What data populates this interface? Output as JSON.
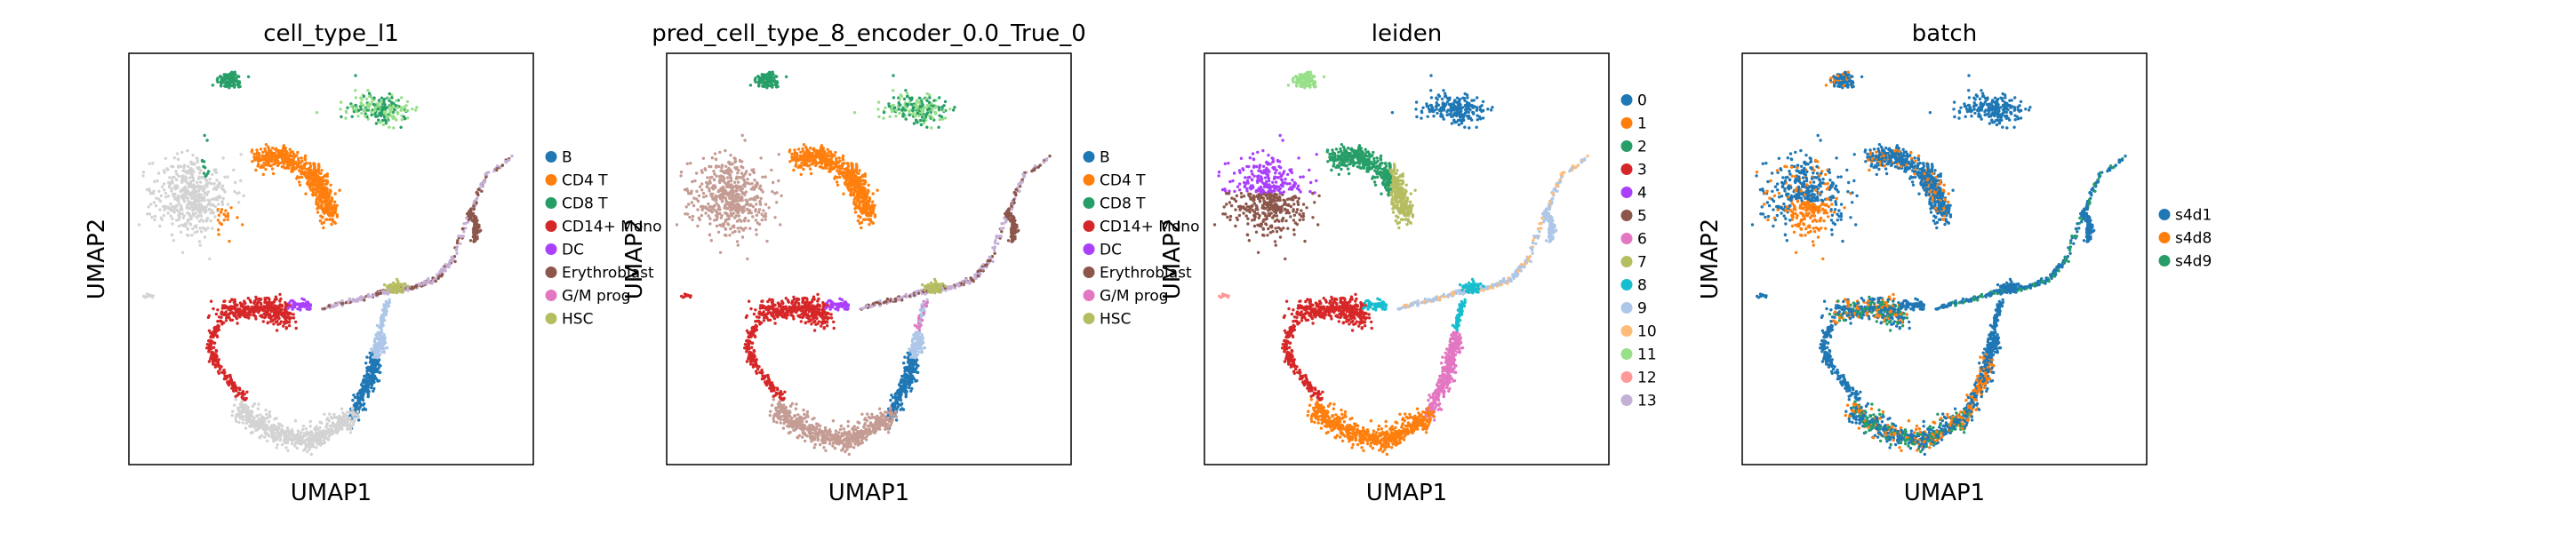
{
  "chart_data": [
    {
      "type": "scatter",
      "title": "cell_type_l1",
      "xlabel": "UMAP1",
      "ylabel": "UMAP2",
      "grid": false,
      "legend_placement": "right",
      "legend": [
        {
          "label": "B",
          "color": "#1f77b4"
        },
        {
          "label": "CD4 T",
          "color": "#ff7f0e"
        },
        {
          "label": "CD8 T",
          "color": "#279e68"
        },
        {
          "label": "CD14+ Mono",
          "color": "#d62728"
        },
        {
          "label": "DC",
          "color": "#aa40fc"
        },
        {
          "label": "Erythroblast",
          "color": "#8c564b"
        },
        {
          "label": "G/M prog",
          "color": "#e377c2"
        },
        {
          "label": "HSC",
          "color": "#b5bd61"
        }
      ]
    },
    {
      "type": "scatter",
      "title": "pred_cell_type_8_encoder_0.0_True_0",
      "xlabel": "UMAP1",
      "ylabel": "UMAP2",
      "grid": false,
      "legend_placement": "right",
      "legend": [
        {
          "label": "B",
          "color": "#1f77b4"
        },
        {
          "label": "CD4 T",
          "color": "#ff7f0e"
        },
        {
          "label": "CD8 T",
          "color": "#279e68"
        },
        {
          "label": "CD14+ Mono",
          "color": "#d62728"
        },
        {
          "label": "DC",
          "color": "#aa40fc"
        },
        {
          "label": "Erythroblast",
          "color": "#8c564b"
        },
        {
          "label": "G/M prog",
          "color": "#e377c2"
        },
        {
          "label": "HSC",
          "color": "#b5bd61"
        }
      ]
    },
    {
      "type": "scatter",
      "title": "leiden",
      "xlabel": "UMAP1",
      "ylabel": "UMAP2",
      "grid": false,
      "legend_placement": "right",
      "legend": [
        {
          "label": "0",
          "color": "#1f77b4"
        },
        {
          "label": "1",
          "color": "#ff7f0e"
        },
        {
          "label": "2",
          "color": "#279e68"
        },
        {
          "label": "3",
          "color": "#d62728"
        },
        {
          "label": "4",
          "color": "#aa40fc"
        },
        {
          "label": "5",
          "color": "#8c564b"
        },
        {
          "label": "6",
          "color": "#e377c2"
        },
        {
          "label": "7",
          "color": "#b5bd61"
        },
        {
          "label": "8",
          "color": "#17becf"
        },
        {
          "label": "9",
          "color": "#aec7e8"
        },
        {
          "label": "10",
          "color": "#ffbb78"
        },
        {
          "label": "11",
          "color": "#98df8a"
        },
        {
          "label": "12",
          "color": "#ff9896"
        },
        {
          "label": "13",
          "color": "#c5b0d5"
        }
      ]
    },
    {
      "type": "scatter",
      "title": "batch",
      "xlabel": "UMAP1",
      "ylabel": "UMAP2",
      "grid": false,
      "legend_placement": "right",
      "legend": [
        {
          "label": "s4d1",
          "color": "#1f77b4"
        },
        {
          "label": "s4d8",
          "color": "#ff7f0e"
        },
        {
          "label": "s4d9",
          "color": "#279e68"
        }
      ]
    }
  ]
}
